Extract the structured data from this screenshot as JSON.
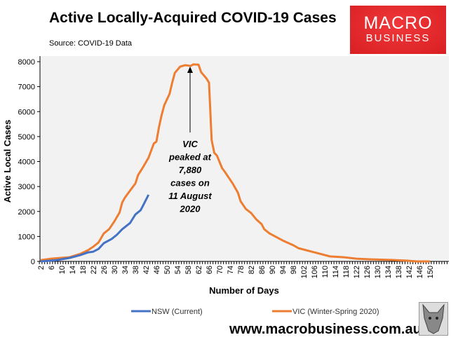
{
  "header": {
    "title": "Active Locally-Acquired COVID-19 Cases",
    "source": "Source: COVID-19 Data",
    "logo_line1": "MACRO",
    "logo_line2": "BUSINESS",
    "url": "www.macrobusiness.com.au"
  },
  "chart_data": {
    "type": "line",
    "title": "Active Locally-Acquired COVID-19 Cases",
    "xlabel": "Number of Days",
    "ylabel": "Active Local Cases",
    "xlim": [
      1,
      156
    ],
    "ylim": [
      0,
      8000
    ],
    "yticks": [
      0,
      1000,
      2000,
      3000,
      4000,
      5000,
      6000,
      7000,
      8000
    ],
    "xtick_labels": [
      2,
      6,
      10,
      14,
      18,
      22,
      26,
      30,
      34,
      38,
      42,
      46,
      50,
      54,
      58,
      62,
      66,
      70,
      74,
      78,
      82,
      86,
      90,
      94,
      98,
      102,
      106,
      110,
      114,
      118,
      122,
      126,
      130,
      134,
      138,
      142,
      146,
      150
    ],
    "grid": false,
    "legend_position": "bottom",
    "annotation": [
      "VIC",
      "peaked at",
      "7,880",
      "cases on",
      "11 August",
      "2020"
    ],
    "series": [
      {
        "name": "NSW (Current)",
        "color": "#4472c4",
        "x": [
          2,
          8,
          13,
          17,
          20,
          22,
          24,
          26,
          29,
          31,
          33,
          36,
          38,
          40,
          41,
          43
        ],
        "y": [
          0,
          50,
          140,
          250,
          360,
          390,
          500,
          730,
          900,
          1070,
          1290,
          1540,
          1880,
          2050,
          2250,
          2670
        ]
      },
      {
        "name": "VIC (Winter-Spring 2020)",
        "color": "#ed7d31",
        "x": [
          2,
          6,
          13,
          17,
          20,
          22,
          24,
          26,
          28,
          30,
          32,
          33,
          34,
          36,
          38,
          39,
          41,
          43,
          45,
          46,
          47,
          48,
          49,
          51,
          52,
          53,
          55,
          57,
          59,
          60,
          62,
          63,
          65,
          66,
          67,
          68,
          69,
          71,
          72,
          75,
          77,
          78,
          80,
          82,
          84,
          86,
          87,
          89,
          91,
          94,
          98,
          100,
          104,
          108,
          112,
          117,
          122,
          127,
          136,
          141,
          145,
          150
        ],
        "y": [
          50,
          110,
          170,
          300,
          450,
          590,
          760,
          1120,
          1290,
          1600,
          1960,
          2360,
          2550,
          2840,
          3120,
          3450,
          3790,
          4150,
          4720,
          4800,
          5390,
          5870,
          6260,
          6710,
          7160,
          7550,
          7800,
          7860,
          7830,
          7890,
          7880,
          7580,
          7330,
          7160,
          4860,
          4350,
          4240,
          3730,
          3590,
          3120,
          2750,
          2410,
          2100,
          1940,
          1680,
          1490,
          1290,
          1120,
          1010,
          840,
          650,
          530,
          420,
          310,
          200,
          170,
          110,
          85,
          55,
          30,
          0,
          0
        ]
      }
    ]
  }
}
